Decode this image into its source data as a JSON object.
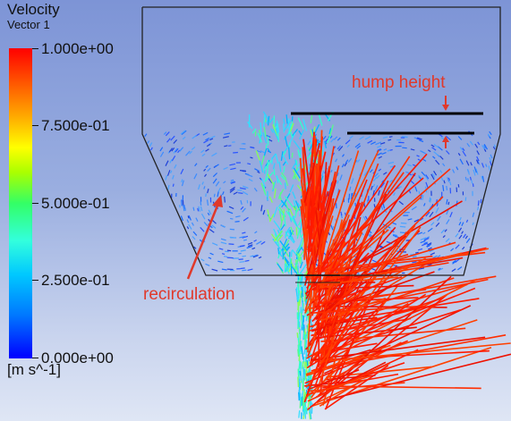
{
  "legend": {
    "title": "Velocity",
    "variable": "Vector 1",
    "unit": "[m s^-1]",
    "ticks": [
      "1.000e+00",
      "7.500e-01",
      "5.000e-01",
      "2.500e-01",
      "0.000e+00"
    ],
    "colormap": [
      "#0000ff",
      "#00c8ff",
      "#33ff66",
      "#ffff00",
      "#ff0000"
    ]
  },
  "annotations": {
    "hump_height": "hump height",
    "recirculation": "recirculation",
    "color": "#e0392b"
  },
  "colors": {
    "vessel_outline": "#222222",
    "background_top": "#7d94d6",
    "background_bottom": "#dfe6f5"
  }
}
